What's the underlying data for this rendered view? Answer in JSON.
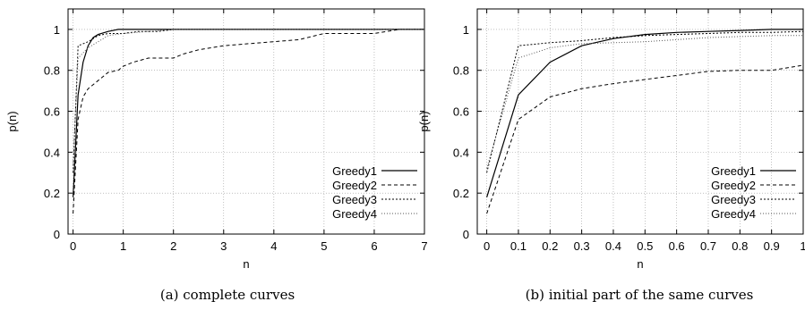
{
  "chart_data": [
    {
      "type": "line",
      "caption": "(a) complete curves",
      "xlabel": "n",
      "ylabel": "p(n)",
      "xlim": [
        -0.1,
        7
      ],
      "ylim": [
        0,
        1.1
      ],
      "xticks": [
        0,
        1,
        2,
        3,
        4,
        5,
        6,
        7
      ],
      "xtick_labels": [
        "0",
        "1",
        "2",
        "3",
        "4",
        "5",
        "6",
        "7"
      ],
      "yticks": [
        0,
        0.2,
        0.4,
        0.6,
        0.8,
        1
      ],
      "ytick_labels": [
        "0",
        "0.2",
        "0.4",
        "0.6",
        "0.8",
        "1"
      ],
      "grid": true,
      "legend_position": "bottom-right",
      "series": [
        {
          "name": "Greedy1",
          "dash": "",
          "color": "#000000",
          "x": [
            0,
            0.1,
            0.2,
            0.3,
            0.4,
            0.5,
            0.7,
            0.9,
            1.0,
            7.0
          ],
          "y": [
            0.18,
            0.68,
            0.84,
            0.92,
            0.96,
            0.975,
            0.99,
            1.0,
            1.0,
            1.0
          ]
        },
        {
          "name": "Greedy2",
          "dash": "4,3",
          "color": "#000000",
          "x": [
            0,
            0.1,
            0.2,
            0.3,
            0.5,
            0.7,
            0.9,
            1.0,
            1.2,
            1.5,
            2.0,
            2.2,
            2.5,
            3.0,
            3.5,
            4.0,
            4.5,
            5.0,
            6.0,
            6.5,
            7.0
          ],
          "y": [
            0.1,
            0.56,
            0.67,
            0.71,
            0.75,
            0.79,
            0.8,
            0.82,
            0.84,
            0.86,
            0.86,
            0.88,
            0.9,
            0.92,
            0.93,
            0.94,
            0.95,
            0.98,
            0.98,
            1.0,
            1.0
          ]
        },
        {
          "name": "Greedy3",
          "dash": "2,2",
          "color": "#000000",
          "x": [
            0,
            0.1,
            0.3,
            0.5,
            0.7,
            1.0,
            1.3,
            1.7,
            2.0,
            7.0
          ],
          "y": [
            0.3,
            0.92,
            0.94,
            0.97,
            0.98,
            0.98,
            0.99,
            0.99,
            1.0,
            1.0
          ]
        },
        {
          "name": "Greedy4",
          "dash": "1,2",
          "color": "#555555",
          "x": [
            0,
            0.1,
            0.3,
            0.5,
            0.7,
            1.0,
            1.5,
            2.0,
            7.0
          ],
          "y": [
            0.32,
            0.86,
            0.91,
            0.94,
            0.97,
            0.98,
            0.99,
            1.0,
            1.0
          ]
        }
      ]
    },
    {
      "type": "line",
      "caption": "(b) initial part of the same curves",
      "xlabel": "n",
      "ylabel": "p(n)",
      "xlim": [
        -0.03,
        1
      ],
      "ylim": [
        0,
        1.1
      ],
      "xticks": [
        0,
        0.1,
        0.2,
        0.3,
        0.4,
        0.5,
        0.6,
        0.7,
        0.8,
        0.9,
        1
      ],
      "xtick_labels": [
        "0",
        "0.1",
        "0.2",
        "0.3",
        "0.4",
        "0.5",
        "0.6",
        "0.7",
        "0.8",
        "0.9",
        "1"
      ],
      "yticks": [
        0,
        0.2,
        0.4,
        0.6,
        0.8,
        1
      ],
      "ytick_labels": [
        "0",
        "0.2",
        "0.4",
        "0.6",
        "0.8",
        "1"
      ],
      "grid": true,
      "legend_position": "bottom-right",
      "series": [
        {
          "name": "Greedy1",
          "dash": "",
          "color": "#000000",
          "x": [
            0,
            0.1,
            0.2,
            0.3,
            0.4,
            0.5,
            0.6,
            0.7,
            0.8,
            0.9,
            1.0
          ],
          "y": [
            0.18,
            0.68,
            0.84,
            0.92,
            0.955,
            0.975,
            0.985,
            0.99,
            0.995,
            1.0,
            1.0
          ]
        },
        {
          "name": "Greedy2",
          "dash": "4,3",
          "color": "#000000",
          "x": [
            0,
            0.1,
            0.2,
            0.3,
            0.4,
            0.5,
            0.6,
            0.7,
            0.8,
            0.9,
            1.0
          ],
          "y": [
            0.1,
            0.56,
            0.67,
            0.71,
            0.735,
            0.755,
            0.775,
            0.795,
            0.8,
            0.8,
            0.825
          ]
        },
        {
          "name": "Greedy3",
          "dash": "2,2",
          "color": "#000000",
          "x": [
            0,
            0.1,
            0.2,
            0.3,
            0.4,
            0.5,
            0.6,
            0.7,
            0.8,
            0.9,
            1.0
          ],
          "y": [
            0.3,
            0.92,
            0.935,
            0.945,
            0.96,
            0.97,
            0.975,
            0.98,
            0.985,
            0.985,
            0.99
          ]
        },
        {
          "name": "Greedy4",
          "dash": "1,2",
          "color": "#555555",
          "x": [
            0,
            0.1,
            0.2,
            0.3,
            0.4,
            0.5,
            0.6,
            0.7,
            0.8,
            0.9,
            1.0
          ],
          "y": [
            0.32,
            0.86,
            0.91,
            0.93,
            0.935,
            0.94,
            0.95,
            0.96,
            0.965,
            0.97,
            0.97
          ]
        }
      ]
    }
  ]
}
